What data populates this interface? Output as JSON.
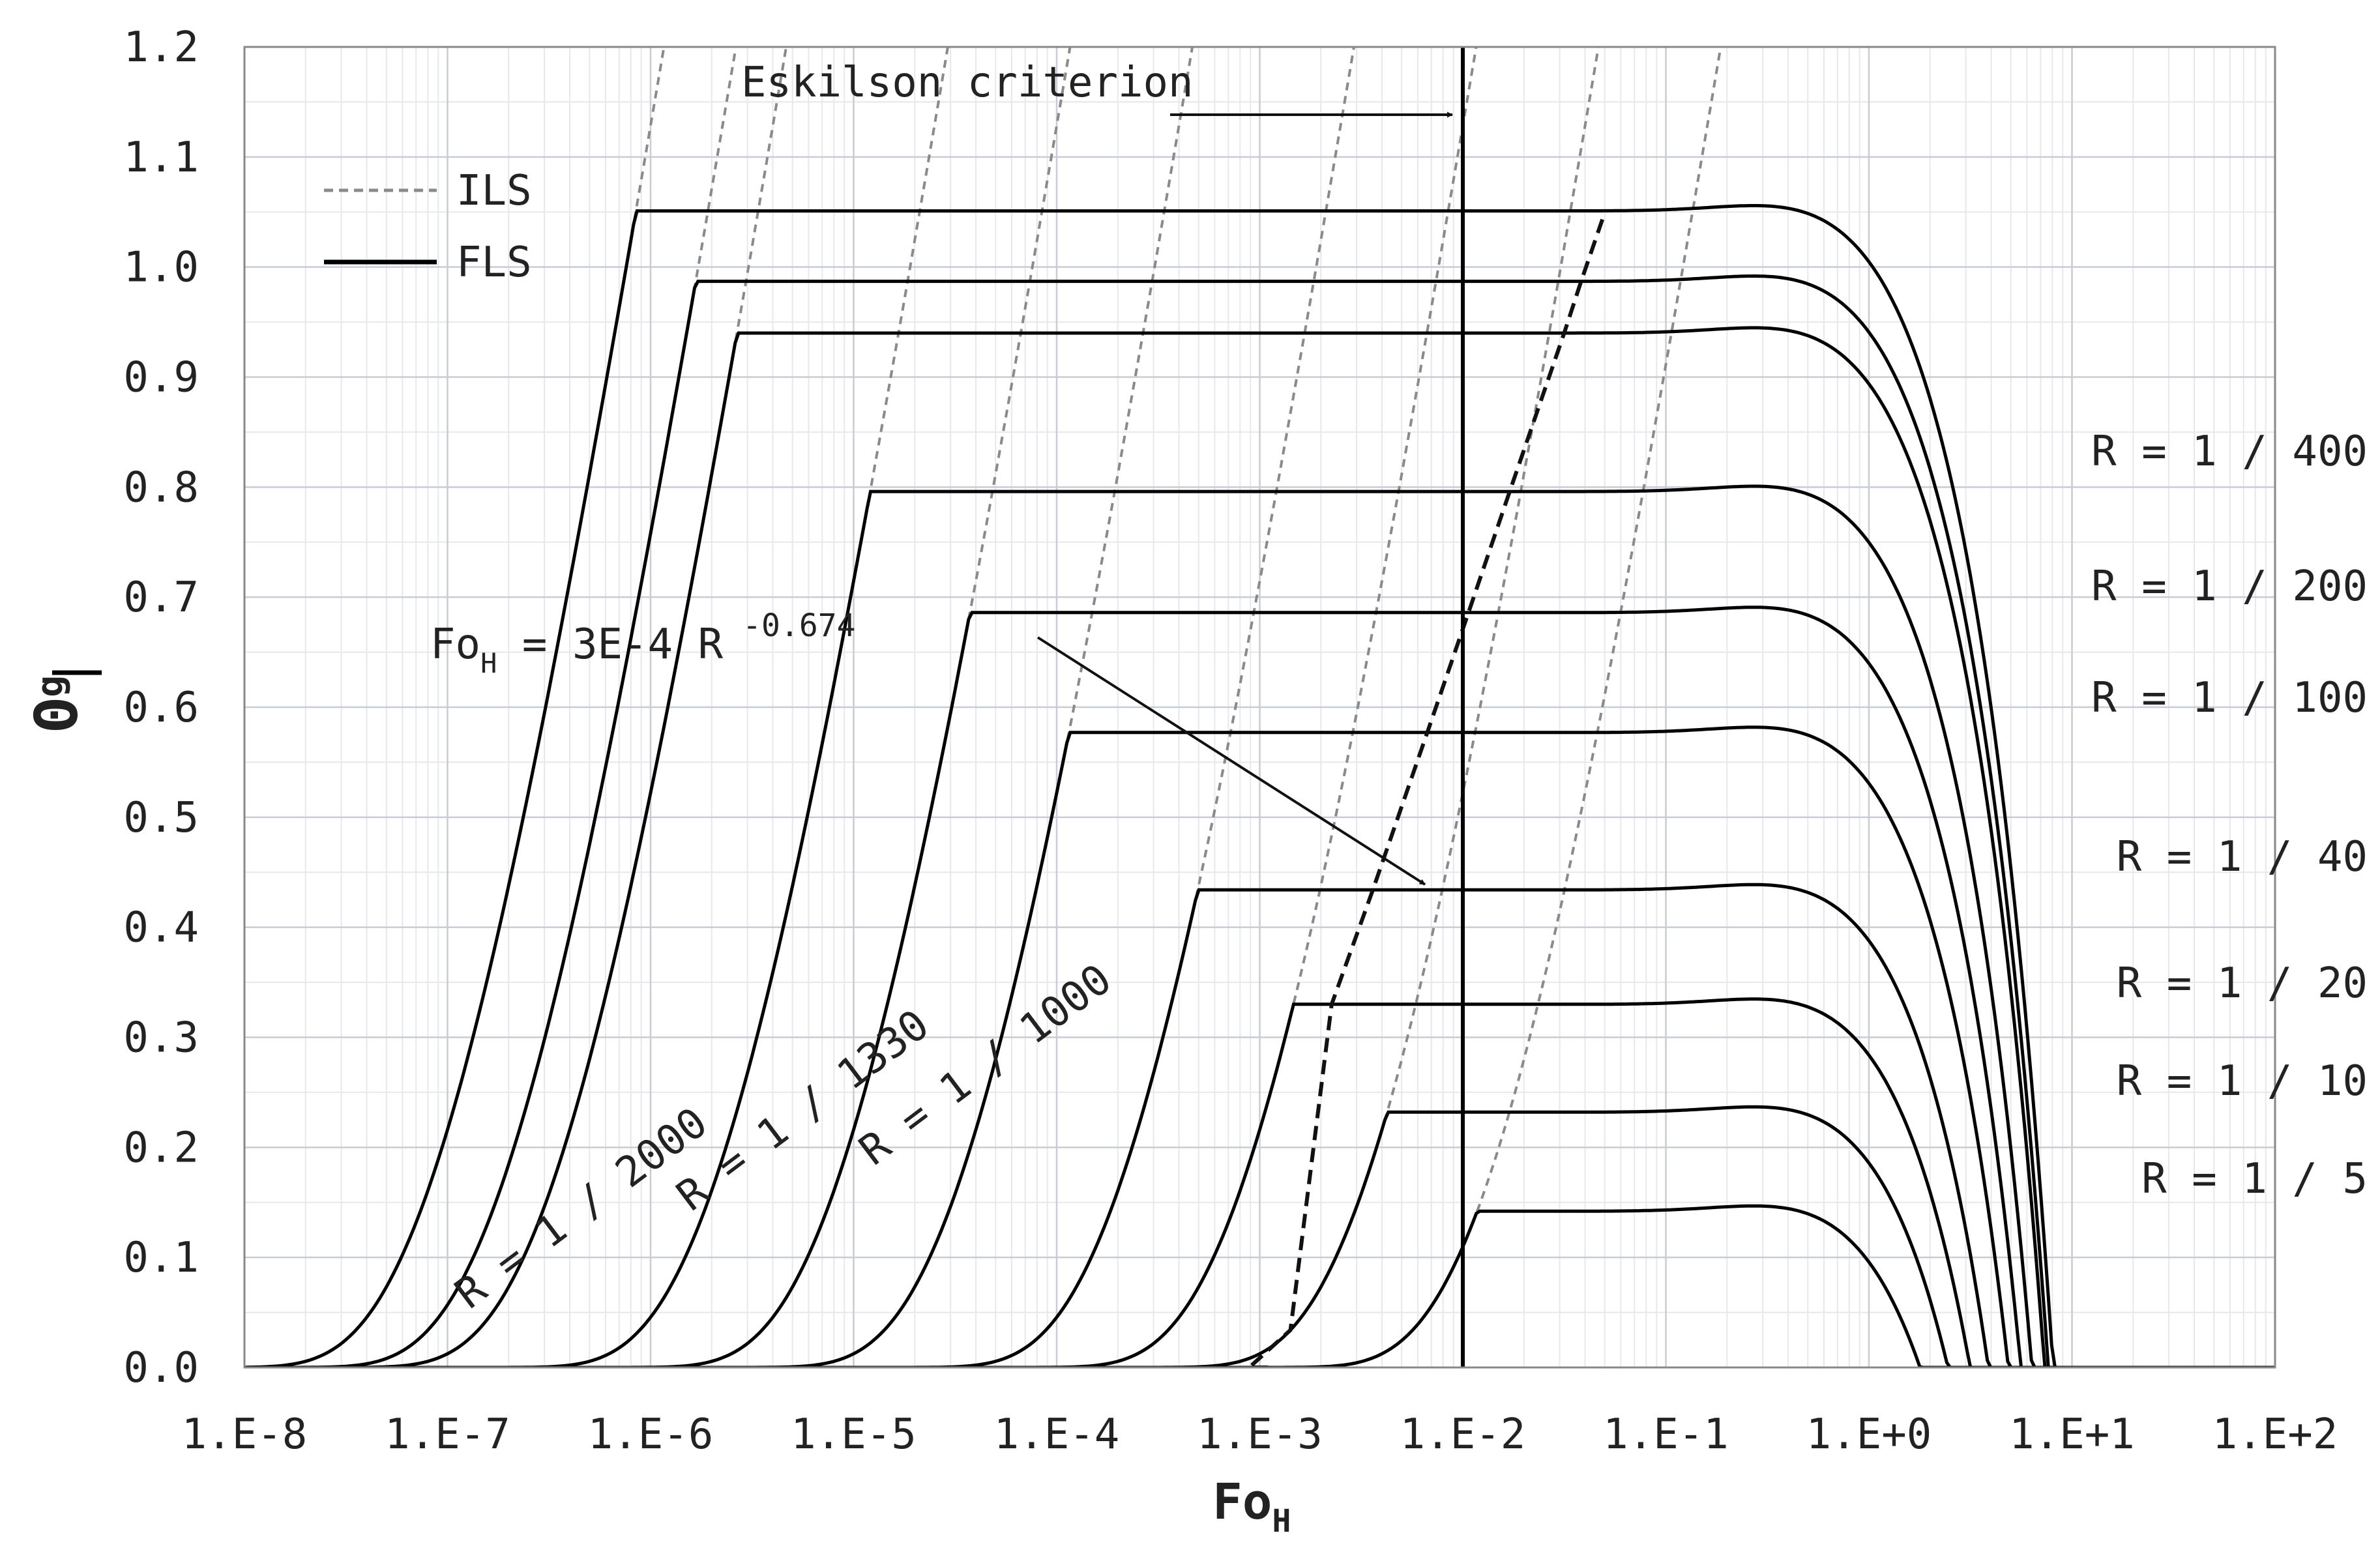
{
  "chart_data": {
    "type": "line",
    "xscale": "log",
    "xlim": [
      1e-08,
      100
    ],
    "ylim": [
      0,
      1.2
    ],
    "grid": true,
    "legend_position": "top-left",
    "xticks": [
      "1.E-8",
      "1.E-7",
      "1.E-6",
      "1.E-5",
      "1.E-4",
      "1.E-3",
      "1.E-2",
      "1.E-1",
      "1.E+0",
      "1.E+1",
      "1.E+2"
    ],
    "yticks": [
      "0.0",
      "0.1",
      "0.2",
      "0.3",
      "0.4",
      "0.5",
      "0.6",
      "0.7",
      "0.8",
      "0.9",
      "1.0",
      "1.1",
      "1.2"
    ],
    "xlabel": {
      "main": "Fo",
      "sub": "H"
    },
    "ylabel": {
      "main": "Θ",
      "sub": "g"
    },
    "legend": [
      {
        "label": "ILS",
        "style": "dashed",
        "color": "#8a8a8a"
      },
      {
        "label": "FLS",
        "style": "solid",
        "color": "#000000"
      }
    ],
    "eskilson": {
      "label": "Eskilson criterion",
      "x": 0.01
    },
    "correlation": {
      "text": "Fo",
      "sub": "H",
      "rest": " = 3E-4 R",
      "exponent": "-0.674",
      "coef": 0.0003,
      "power": -0.674
    },
    "series": [
      {
        "label": "R = 1 / 5",
        "R": 0.2,
        "plateau": 0.142
      },
      {
        "label": "R = 1 / 10",
        "R": 0.1,
        "plateau": 0.232
      },
      {
        "label": "R = 1 / 20",
        "R": 0.05,
        "plateau": 0.33
      },
      {
        "label": "R = 1 / 40",
        "R": 0.025,
        "plateau": 0.434
      },
      {
        "label": "R = 1 / 100",
        "R": 0.01,
        "plateau": 0.577
      },
      {
        "label": "R = 1 / 200",
        "R": 0.005,
        "plateau": 0.686
      },
      {
        "label": "R = 1 / 400",
        "R": 0.0025,
        "plateau": 0.796
      },
      {
        "label": "R = 1 / 1000",
        "R": 0.001,
        "plateau": 0.94
      },
      {
        "label": "R = 1 / 1330",
        "R": 0.000752,
        "plateau": 0.987
      },
      {
        "label": "R = 1 / 2000",
        "R": 0.0005,
        "plateau": 1.051
      }
    ],
    "colors": {
      "ils": "#8a8a8a",
      "fls": "#000000",
      "grid_major": "#c8ccd4",
      "grid_minor": "#e6e8ec"
    }
  }
}
